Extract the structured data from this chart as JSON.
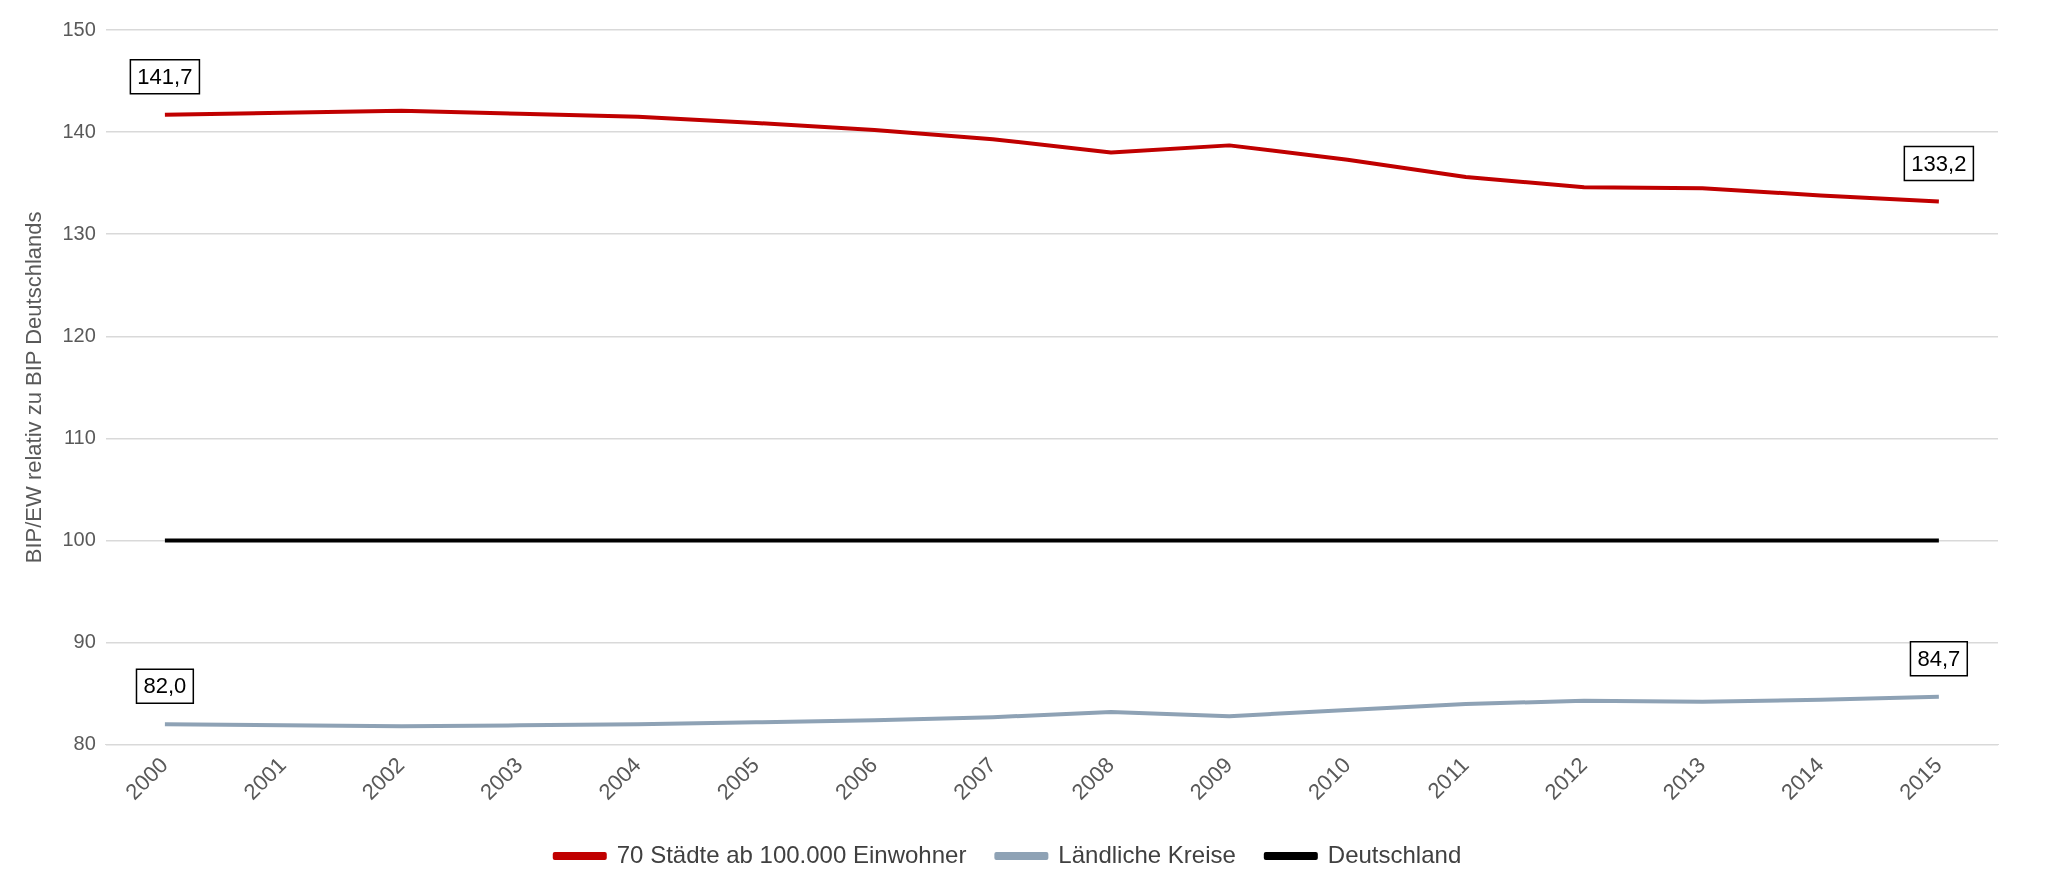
{
  "chart_data": {
    "type": "line",
    "ylabel": "BIP/EW relativ zu BIP Deutschlands",
    "categories": [
      "2000",
      "2001",
      "2002",
      "2003",
      "2004",
      "2005",
      "2006",
      "2007",
      "2008",
      "2009",
      "2010",
      "2011",
      "2012",
      "2013",
      "2014",
      "2015"
    ],
    "series": [
      {
        "name": "70 Städte ab 100.000 Einwohner",
        "color": "#c00000",
        "values": [
          141.7,
          141.9,
          142.1,
          141.8,
          141.5,
          140.9,
          140.2,
          139.3,
          138.0,
          138.7,
          137.3,
          135.6,
          134.6,
          134.5,
          133.8,
          133.2
        ],
        "value_labels": [
          "141,7",
          null,
          null,
          null,
          null,
          null,
          null,
          null,
          null,
          null,
          null,
          null,
          null,
          null,
          null,
          "133,2"
        ]
      },
      {
        "name": "Ländliche Kreise",
        "color": "#8ea2b5",
        "values": [
          82.0,
          81.9,
          81.8,
          81.9,
          82.0,
          82.2,
          82.4,
          82.7,
          83.2,
          82.8,
          83.4,
          84.0,
          84.3,
          84.2,
          84.4,
          84.7
        ],
        "value_labels": [
          "82,0",
          null,
          null,
          null,
          null,
          null,
          null,
          null,
          null,
          null,
          null,
          null,
          null,
          null,
          null,
          "84,7"
        ]
      },
      {
        "name": "Deutschland",
        "color": "#000000",
        "values": [
          100,
          100,
          100,
          100,
          100,
          100,
          100,
          100,
          100,
          100,
          100,
          100,
          100,
          100,
          100,
          100
        ]
      }
    ],
    "ylim": [
      80,
      150
    ],
    "yticks": [
      80,
      90,
      100,
      110,
      120,
      130,
      140,
      150
    ],
    "grid": "y",
    "legend": "bottom",
    "marker": "none",
    "line_style": "solid"
  }
}
